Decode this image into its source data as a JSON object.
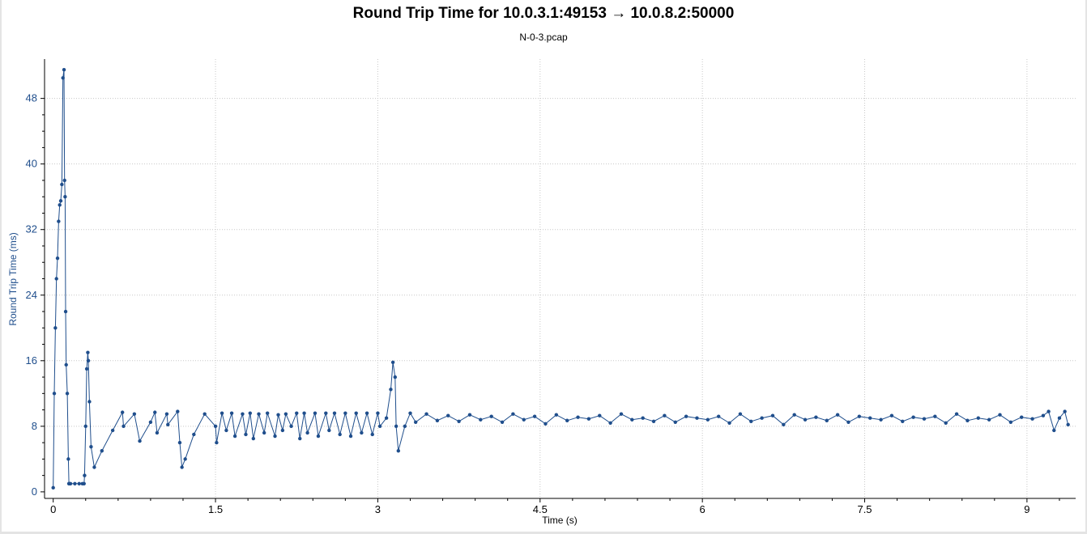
{
  "chart_data": {
    "type": "scatter",
    "title": "Round Trip Time for 10.0.3.1:49153 → 10.0.8.2:50000",
    "subtitle": "N-0-3.pcap",
    "xlabel": "Time (s)",
    "ylabel": "Round Trip Time (ms)",
    "xlim": [
      -0.08,
      9.45
    ],
    "ylim": [
      -0.8,
      52.8
    ],
    "x_ticks": [
      0,
      1.5,
      3,
      4.5,
      6,
      7.5,
      9
    ],
    "x_tick_labels": [
      "0",
      "1.5",
      "3",
      "4.5",
      "6",
      "7.5",
      "9"
    ],
    "y_ticks": [
      0,
      8,
      16,
      24,
      32,
      40,
      48
    ],
    "y_tick_labels": [
      "0",
      "8",
      "16",
      "24",
      "32",
      "40",
      "48"
    ],
    "grid": true,
    "colors": {
      "series": "#1f4e8c",
      "grid": "#c8c8c8"
    },
    "series": [
      {
        "style": "line-with-points",
        "x": [
          0.0,
          0.01,
          0.02,
          0.03,
          0.04,
          0.05,
          0.06,
          0.07,
          0.08,
          0.09,
          0.1,
          0.105,
          0.11,
          0.115,
          0.12,
          0.13,
          0.14,
          0.145,
          0.15,
          0.16,
          0.2,
          0.24,
          0.27,
          0.285,
          0.29,
          0.3,
          0.31,
          0.32,
          0.325,
          0.335,
          0.35,
          0.38,
          0.45,
          0.55,
          0.64,
          0.65,
          0.75,
          0.8,
          0.9,
          0.94,
          0.96,
          1.05,
          1.06,
          1.15,
          1.17,
          1.19,
          1.22,
          1.3,
          1.4,
          1.5,
          1.51,
          1.56,
          1.6,
          1.65,
          1.68,
          1.75,
          1.78,
          1.82,
          1.85,
          1.9,
          1.95,
          1.98,
          2.05,
          2.08,
          2.12,
          2.15,
          2.2,
          2.25,
          2.28,
          2.32,
          2.35,
          2.42,
          2.45,
          2.52,
          2.55,
          2.6,
          2.65,
          2.7,
          2.75,
          2.8,
          2.85,
          2.9,
          2.95,
          3.0,
          3.02,
          3.08,
          3.12,
          3.14,
          3.16,
          3.17,
          3.19,
          3.25,
          3.3,
          3.35,
          3.45,
          3.55,
          3.65,
          3.75,
          3.85,
          3.95,
          4.05,
          4.15,
          4.25,
          4.35,
          4.45,
          4.55,
          4.65,
          4.75,
          4.85,
          4.95,
          5.05,
          5.15,
          5.25,
          5.35,
          5.45,
          5.55,
          5.65,
          5.75,
          5.85,
          5.95,
          6.05,
          6.15,
          6.25,
          6.35,
          6.45,
          6.55,
          6.65,
          6.75,
          6.85,
          6.95,
          7.05,
          7.15,
          7.25,
          7.35,
          7.45,
          7.55,
          7.65,
          7.75,
          7.85,
          7.95,
          8.05,
          8.15,
          8.25,
          8.35,
          8.45,
          8.55,
          8.65,
          8.75,
          8.85,
          8.95,
          9.05,
          9.15,
          9.2,
          9.25,
          9.3,
          9.35,
          9.38
        ],
        "y": [
          0.5,
          12.0,
          20.0,
          26.0,
          28.5,
          33.0,
          35.0,
          35.5,
          37.5,
          50.5,
          51.5,
          38.0,
          36.0,
          22.0,
          15.5,
          12.0,
          4.0,
          1.0,
          1.0,
          1.0,
          1.0,
          1.0,
          1.0,
          1.0,
          2.0,
          8.0,
          15.0,
          17.0,
          16.0,
          11.0,
          5.5,
          3.0,
          5.0,
          7.5,
          9.7,
          8.0,
          9.5,
          6.2,
          8.5,
          9.7,
          7.2,
          9.5,
          8.2,
          9.8,
          6.0,
          3.0,
          4.0,
          7.0,
          9.5,
          8.0,
          6.0,
          9.6,
          7.5,
          9.6,
          6.8,
          9.5,
          7.0,
          9.6,
          6.5,
          9.5,
          7.2,
          9.6,
          6.8,
          9.4,
          7.5,
          9.5,
          8.0,
          9.6,
          6.5,
          9.6,
          7.2,
          9.6,
          6.8,
          9.6,
          7.5,
          9.6,
          7.0,
          9.6,
          6.8,
          9.6,
          7.2,
          9.6,
          7.0,
          9.6,
          8.0,
          9.0,
          12.5,
          15.8,
          14.0,
          8.0,
          5.0,
          8.0,
          9.6,
          8.5,
          9.5,
          8.7,
          9.3,
          8.6,
          9.4,
          8.8,
          9.2,
          8.5,
          9.5,
          8.8,
          9.2,
          8.3,
          9.4,
          8.7,
          9.1,
          8.9,
          9.3,
          8.4,
          9.5,
          8.8,
          9.0,
          8.6,
          9.3,
          8.5,
          9.2,
          9.0,
          8.8,
          9.2,
          8.4,
          9.5,
          8.6,
          9.0,
          9.3,
          8.2,
          9.4,
          8.8,
          9.1,
          8.7,
          9.4,
          8.5,
          9.2,
          9.0,
          8.8,
          9.3,
          8.6,
          9.1,
          8.9,
          9.2,
          8.4,
          9.5,
          8.7,
          9.0,
          8.8,
          9.4,
          8.5,
          9.1,
          8.9,
          9.3,
          9.8,
          7.5,
          9.0,
          9.8,
          8.2
        ]
      }
    ]
  }
}
